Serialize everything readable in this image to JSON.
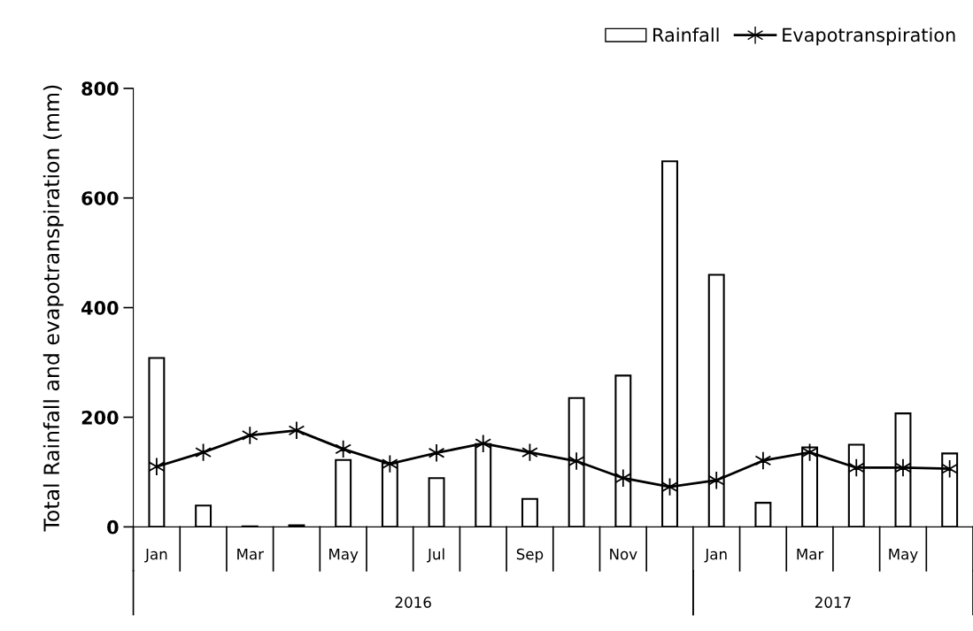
{
  "chart_data": {
    "type": "bar",
    "ylabel": "Total Rainfall and evapotranspiration (mm)",
    "categories": [
      "Jan",
      null,
      "Mar",
      null,
      "May",
      null,
      "Jul",
      null,
      "Sep",
      null,
      "Nov",
      null,
      "Jan",
      null,
      "Mar",
      null,
      "May",
      null
    ],
    "series": [
      {
        "name": "Rainfall",
        "color": "#ffffff",
        "values": [
          308,
          39,
          1,
          3,
          122,
          116,
          89,
          151,
          51,
          235,
          276,
          667,
          460,
          44,
          145,
          150,
          207,
          134
        ]
      },
      {
        "name": "Evapotranspiration",
        "type": "line",
        "color": "#000000",
        "marker": "cross",
        "values": [
          110,
          136,
          167,
          176,
          142,
          115,
          135,
          152,
          136,
          120,
          89,
          73,
          85,
          121,
          136,
          108,
          108,
          106
        ]
      }
    ],
    "ylim": [
      0,
      800
    ],
    "yticks": [
      0,
      200,
      400,
      600,
      800
    ],
    "grid": false,
    "legend": "top right",
    "annotations": [
      "2016",
      "2017"
    ]
  }
}
